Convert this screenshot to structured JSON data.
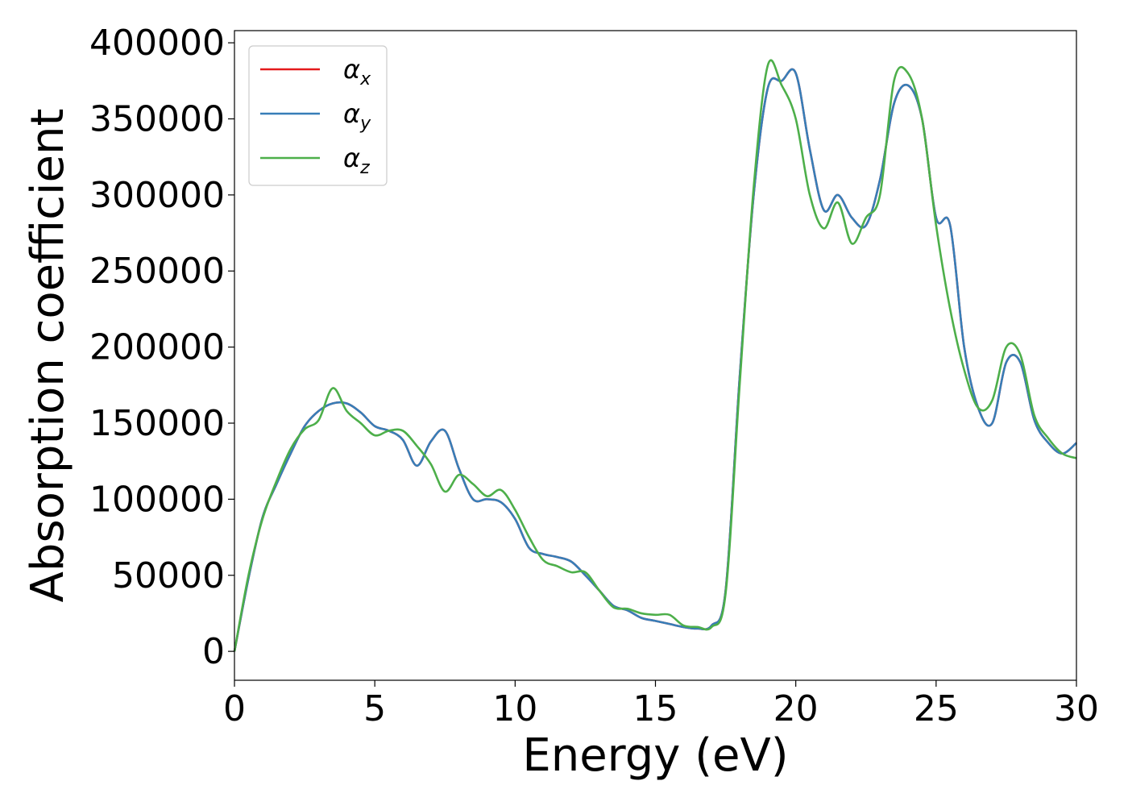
{
  "chart_data": {
    "type": "line",
    "xlabel": "Energy (eV)",
    "ylabel": "Absorption coefficient",
    "xlim": [
      0,
      30
    ],
    "ylim": [
      -19000,
      408000
    ],
    "xticks": [
      "0",
      "5",
      "10",
      "15",
      "20",
      "25",
      "30"
    ],
    "yticks": [
      "0",
      "50000",
      "100000",
      "150000",
      "200000",
      "250000",
      "300000",
      "350000",
      "400000"
    ],
    "grid": false,
    "legend": "top-left",
    "series": [
      {
        "name": "αx",
        "symbol": "α",
        "subscript": "x",
        "color": "#e41a1c",
        "x": [
          0,
          0.5,
          1,
          1.5,
          2,
          2.5,
          3,
          3.5,
          4,
          4.5,
          5,
          5.5,
          6,
          6.5,
          7,
          7.5,
          8,
          8.5,
          9,
          9.5,
          10,
          10.5,
          11,
          11.5,
          12,
          12.5,
          13,
          13.5,
          14,
          14.5,
          15,
          15.5,
          16,
          16.5,
          17,
          17.5,
          18,
          18.5,
          19,
          19.5,
          20,
          20.5,
          21,
          21.5,
          22,
          22.5,
          23,
          23.5,
          24,
          24.5,
          25,
          25.5,
          26,
          26.5,
          27,
          27.5,
          28,
          28.5,
          29,
          29.5,
          30
        ],
        "y": [
          0,
          48000,
          88000,
          110000,
          130000,
          148000,
          158000,
          163000,
          163000,
          157000,
          148000,
          145000,
          139000,
          122000,
          138000,
          145000,
          120000,
          100000,
          100000,
          98000,
          87000,
          68000,
          64000,
          62000,
          59000,
          50000,
          40000,
          30000,
          27000,
          22000,
          20000,
          18000,
          16000,
          15000,
          17000,
          40000,
          180000,
          300000,
          370000,
          375000,
          380000,
          330000,
          290000,
          300000,
          285000,
          280000,
          310000,
          360000,
          372000,
          350000,
          285000,
          280000,
          200000,
          160000,
          150000,
          190000,
          190000,
          152000,
          137000,
          130000,
          137000
        ]
      },
      {
        "name": "αy",
        "symbol": "α",
        "subscript": "y",
        "color": "#377eb8",
        "x": [
          0,
          0.5,
          1,
          1.5,
          2,
          2.5,
          3,
          3.5,
          4,
          4.5,
          5,
          5.5,
          6,
          6.5,
          7,
          7.5,
          8,
          8.5,
          9,
          9.5,
          10,
          10.5,
          11,
          11.5,
          12,
          12.5,
          13,
          13.5,
          14,
          14.5,
          15,
          15.5,
          16,
          16.5,
          17,
          17.5,
          18,
          18.5,
          19,
          19.5,
          20,
          20.5,
          21,
          21.5,
          22,
          22.5,
          23,
          23.5,
          24,
          24.5,
          25,
          25.5,
          26,
          26.5,
          27,
          27.5,
          28,
          28.5,
          29,
          29.5,
          30
        ],
        "y": [
          0,
          48000,
          88000,
          110000,
          130000,
          148000,
          158000,
          163000,
          163000,
          157000,
          148000,
          145000,
          139000,
          122000,
          138000,
          145000,
          120000,
          100000,
          100000,
          98000,
          87000,
          68000,
          64000,
          62000,
          59000,
          50000,
          40000,
          30000,
          27000,
          22000,
          20000,
          18000,
          16000,
          15000,
          17000,
          40000,
          180000,
          300000,
          370000,
          375000,
          380000,
          330000,
          290000,
          300000,
          285000,
          280000,
          310000,
          360000,
          372000,
          350000,
          285000,
          280000,
          200000,
          160000,
          150000,
          190000,
          190000,
          152000,
          137000,
          130000,
          137000
        ]
      },
      {
        "name": "αz",
        "symbol": "α",
        "subscript": "z",
        "color": "#4daf4a",
        "x": [
          0,
          0.5,
          1,
          1.5,
          2,
          2.5,
          3,
          3.5,
          4,
          4.5,
          5,
          5.5,
          6,
          6.5,
          7,
          7.5,
          8,
          8.5,
          9,
          9.5,
          10,
          10.5,
          11,
          11.5,
          12,
          12.5,
          13,
          13.5,
          14,
          14.5,
          15,
          15.5,
          16,
          16.5,
          17,
          17.5,
          18,
          18.5,
          19,
          19.5,
          20,
          20.5,
          21,
          21.5,
          22,
          22.5,
          23,
          23.5,
          24,
          24.5,
          25,
          25.5,
          26,
          26.5,
          27,
          27.5,
          28,
          28.5,
          29,
          29.5,
          30
        ],
        "y": [
          0,
          50000,
          87000,
          112000,
          133000,
          146000,
          152000,
          173000,
          158000,
          150000,
          142000,
          145000,
          145000,
          135000,
          123000,
          105000,
          116000,
          110000,
          102000,
          106000,
          93000,
          75000,
          60000,
          56000,
          52000,
          52000,
          40000,
          29000,
          28000,
          25000,
          24000,
          24000,
          17000,
          16000,
          16000,
          38000,
          175000,
          305000,
          385000,
          372000,
          350000,
          300000,
          278000,
          295000,
          268000,
          285000,
          300000,
          375000,
          380000,
          350000,
          280000,
          225000,
          185000,
          160000,
          165000,
          200000,
          195000,
          155000,
          140000,
          130000,
          127000
        ]
      }
    ]
  }
}
